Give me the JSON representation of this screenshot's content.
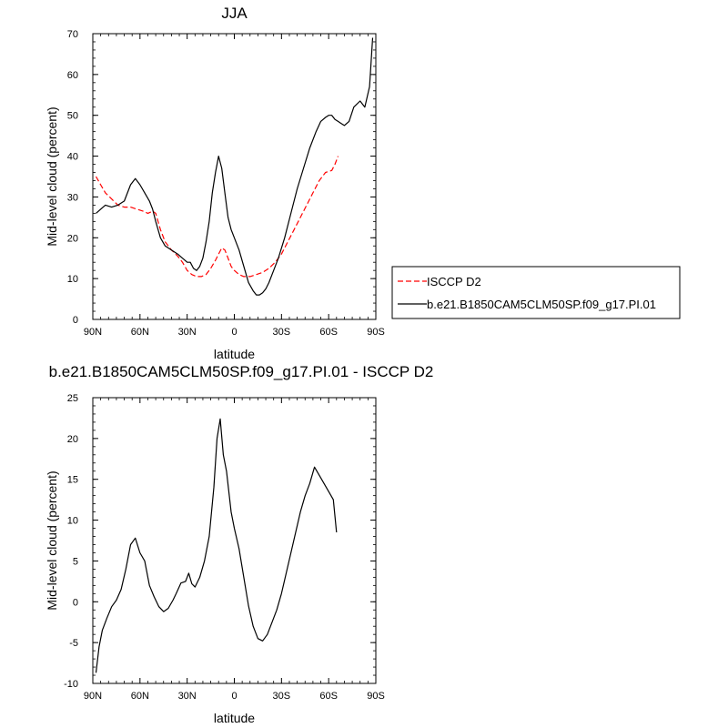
{
  "chart_data": [
    {
      "type": "line",
      "title": "JJA",
      "xlabel": "latitude",
      "ylabel": "Mid-level cloud (percent)",
      "xlim": [
        90,
        -90
      ],
      "ylim": [
        0,
        70
      ],
      "x_ticks": [
        90,
        60,
        30,
        0,
        -30,
        -60,
        -90
      ],
      "x_tick_labels": [
        "90N",
        "60N",
        "30N",
        "0",
        "30S",
        "60S",
        "90S"
      ],
      "y_ticks": [
        0,
        10,
        20,
        30,
        40,
        50,
        60,
        70
      ],
      "y_tick_labels": [
        "0",
        "10",
        "20",
        "30",
        "40",
        "50",
        "60",
        "70"
      ],
      "legend_position": "right",
      "series": [
        {
          "name": "ISCCP D2",
          "color": "#ff0000",
          "dash": "dashed",
          "x": [
            88,
            85,
            82,
            78,
            74,
            70,
            66,
            62,
            58,
            55,
            52,
            50,
            47,
            44,
            40,
            36,
            33,
            30,
            27,
            24,
            21,
            18,
            15,
            12,
            10,
            8,
            6,
            4,
            2,
            0,
            -3,
            -6,
            -10,
            -14,
            -18,
            -22,
            -26,
            -30,
            -34,
            -38,
            -42,
            -46,
            -50,
            -54,
            -58,
            -62,
            -64,
            -66
          ],
          "y": [
            35,
            33,
            31,
            29.5,
            28,
            27.5,
            27.5,
            27,
            26.5,
            26,
            26.5,
            26,
            22,
            19,
            17,
            15.5,
            14,
            12,
            11,
            10.5,
            10.5,
            11,
            12.5,
            14.5,
            16,
            17.5,
            17,
            15,
            13,
            12,
            11,
            10.5,
            10.5,
            11,
            11.5,
            12.5,
            14,
            16,
            19,
            22,
            25,
            28,
            31,
            34,
            36,
            36.5,
            38,
            40
          ]
        },
        {
          "name": "b.e21.B1850CAM5CLM50SP.f09_g17.PI.01",
          "color": "#000000",
          "dash": "solid",
          "x": [
            88,
            85,
            82,
            78,
            74,
            70,
            66,
            63,
            60,
            57,
            54,
            52,
            50,
            47,
            44,
            40,
            36,
            33,
            30,
            28,
            26,
            24,
            22,
            20,
            18,
            16,
            14,
            12,
            10,
            8,
            6,
            4,
            2,
            0,
            -3,
            -6,
            -9,
            -12,
            -14,
            -16,
            -18,
            -20,
            -22,
            -25,
            -28,
            -32,
            -36,
            -40,
            -44,
            -48,
            -52,
            -55,
            -58,
            -60,
            -62,
            -64,
            -66,
            -68,
            -70,
            -73,
            -76,
            -80,
            -83,
            -86,
            -88
          ],
          "y": [
            26,
            27,
            28,
            27.5,
            28,
            29,
            33,
            34.5,
            33,
            31,
            29,
            27,
            24,
            20,
            18,
            17,
            16,
            15,
            14,
            14,
            12.5,
            12,
            13,
            15,
            19,
            24,
            31,
            36,
            40,
            37,
            31,
            25,
            22,
            20,
            17,
            13,
            9,
            7,
            6,
            6,
            6.5,
            7.5,
            9,
            12,
            15,
            20,
            26,
            32,
            37,
            42,
            46,
            48.5,
            49.5,
            50,
            50,
            49,
            48.5,
            48,
            47.5,
            48.5,
            52,
            53.5,
            52,
            57,
            69
          ]
        }
      ]
    },
    {
      "type": "line",
      "title": "b.e21.B1850CAM5CLM50SP.f09_g17.PI.01 - ISCCP D2",
      "xlabel": "latitude",
      "ylabel": "Mid-level cloud (percent)",
      "xlim": [
        90,
        -90
      ],
      "ylim": [
        -10,
        25
      ],
      "x_ticks": [
        90,
        60,
        30,
        0,
        -30,
        -60,
        -90
      ],
      "x_tick_labels": [
        "90N",
        "60N",
        "30N",
        "0",
        "30S",
        "60S",
        "90S"
      ],
      "y_ticks": [
        -10,
        -5,
        0,
        5,
        10,
        15,
        20,
        25
      ],
      "y_tick_labels": [
        "-10",
        "-5",
        "0",
        "5",
        "10",
        "15",
        "20",
        "25"
      ],
      "series": [
        {
          "color": "#000000",
          "dash": "solid",
          "x": [
            88,
            86,
            84,
            81,
            78,
            75,
            72,
            69,
            66,
            63,
            60,
            57,
            54,
            51,
            48,
            45,
            42,
            39,
            37,
            34,
            31,
            29,
            27,
            25,
            22,
            19,
            16,
            13,
            11,
            9,
            7,
            5,
            2,
            0,
            -3,
            -6,
            -9,
            -12,
            -15,
            -18,
            -21,
            -24,
            -27,
            -30,
            -33,
            -36,
            -39,
            -42,
            -45,
            -48,
            -51,
            -54,
            -57,
            -60,
            -63,
            -65
          ],
          "y": [
            -8.7,
            -5.5,
            -3.5,
            -2,
            -0.6,
            0.2,
            1.5,
            4,
            7,
            7.8,
            6,
            5,
            2,
            0.6,
            -0.6,
            -1.2,
            -0.8,
            0.2,
            1,
            2.3,
            2.5,
            3.5,
            2.2,
            1.8,
            3,
            5,
            8,
            14,
            20,
            22.4,
            18,
            16,
            11,
            9,
            6.5,
            3,
            -0.5,
            -3,
            -4.5,
            -4.8,
            -4,
            -2.5,
            -1,
            1,
            3.5,
            6,
            8.5,
            11,
            13,
            14.5,
            16.5,
            15.5,
            14.5,
            13.5,
            12.5,
            8.5
          ]
        }
      ]
    }
  ]
}
